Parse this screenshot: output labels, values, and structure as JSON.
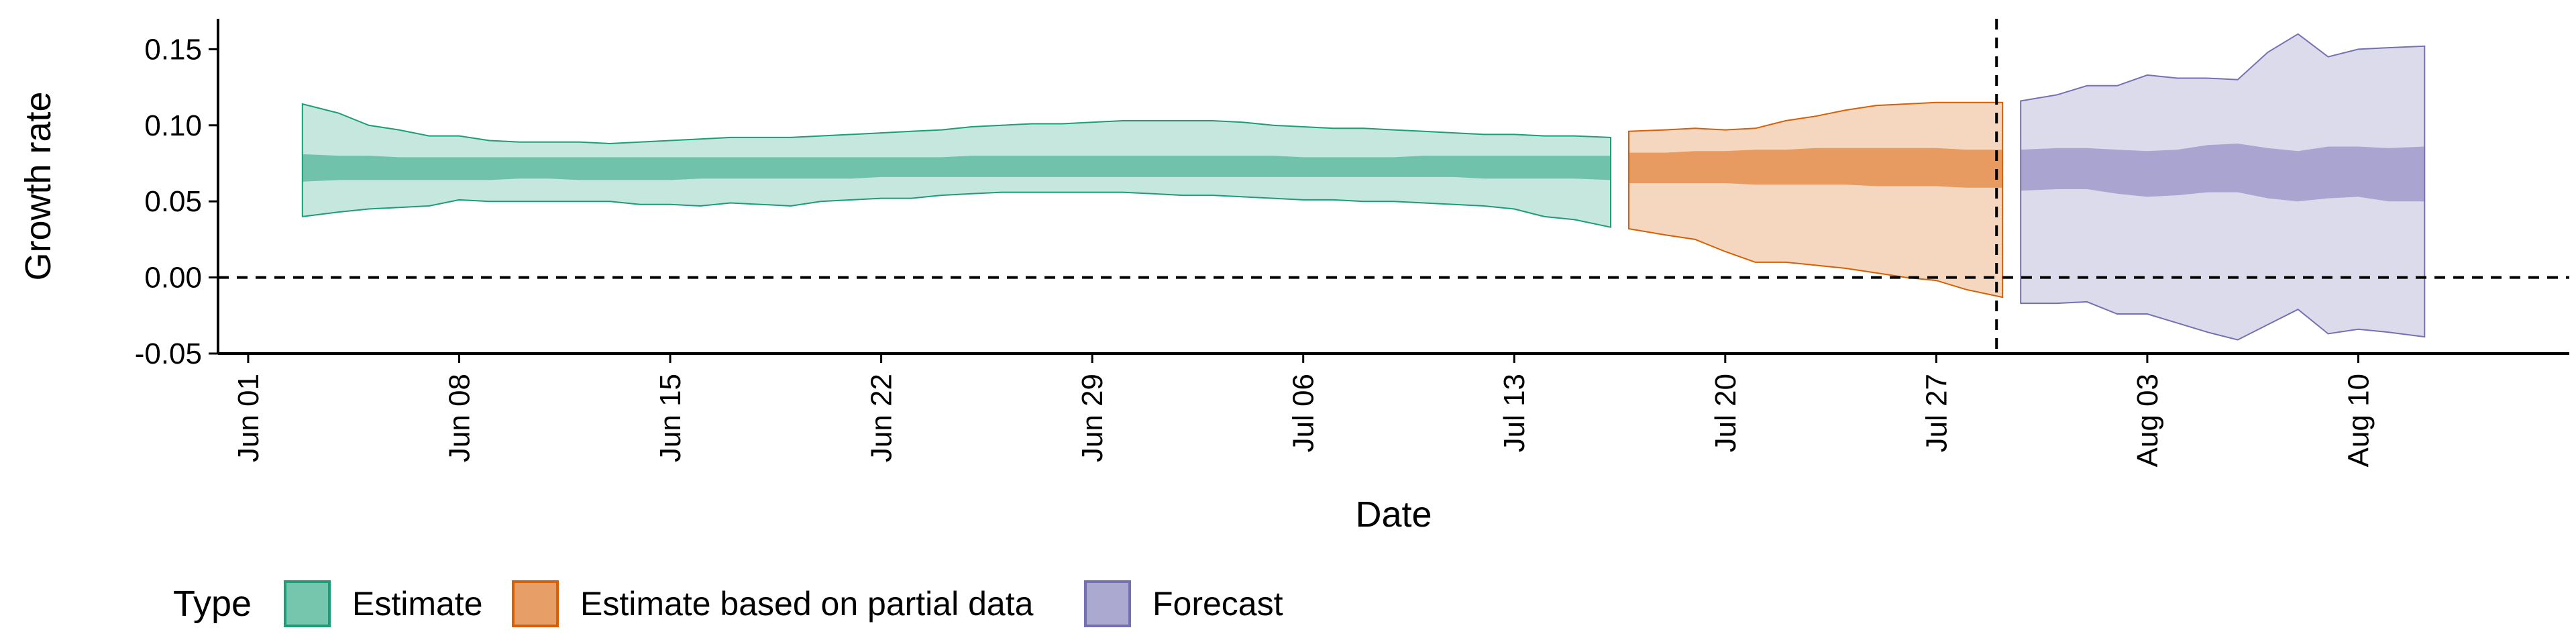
{
  "chart_data": {
    "type": "area",
    "title": "",
    "xlabel": "Date",
    "ylabel": "Growth rate",
    "ylim": [
      -0.05,
      0.17
    ],
    "xlim": [
      "2020-05-31",
      "2020-08-17"
    ],
    "grid": false,
    "x_ticks": [
      {
        "date": "2020-06-01",
        "label": "Jun 01"
      },
      {
        "date": "2020-06-08",
        "label": "Jun 08"
      },
      {
        "date": "2020-06-15",
        "label": "Jun 15"
      },
      {
        "date": "2020-06-22",
        "label": "Jun 22"
      },
      {
        "date": "2020-06-29",
        "label": "Jun 29"
      },
      {
        "date": "2020-07-06",
        "label": "Jul 06"
      },
      {
        "date": "2020-07-13",
        "label": "Jul 13"
      },
      {
        "date": "2020-07-20",
        "label": "Jul 20"
      },
      {
        "date": "2020-07-27",
        "label": "Jul 27"
      },
      {
        "date": "2020-08-03",
        "label": "Aug 03"
      },
      {
        "date": "2020-08-10",
        "label": "Aug 10"
      }
    ],
    "y_ticks": [
      {
        "value": -0.05,
        "label": "-0.05"
      },
      {
        "value": 0.0,
        "label": "0.00"
      },
      {
        "value": 0.05,
        "label": "0.05"
      },
      {
        "value": 0.1,
        "label": "0.10"
      },
      {
        "value": 0.15,
        "label": "0.15"
      }
    ],
    "reference_lines": {
      "horizontal_y": 0.0,
      "vertical_date": "2020-07-29"
    },
    "legend": {
      "title": "Type",
      "position": "bottom-left",
      "entries": [
        {
          "label": "Estimate",
          "fill": "#1b9e77",
          "stroke": "#1b9e77"
        },
        {
          "label": "Estimate based on partial data",
          "fill": "#d95f02",
          "stroke": "#d95f02"
        },
        {
          "label": "Forecast",
          "fill": "#7570b3",
          "stroke": "#7570b3"
        }
      ]
    },
    "series": [
      {
        "name": "Estimate",
        "color": "#1b9e77",
        "dates": [
          "2020-06-03",
          "2020-06-04",
          "2020-06-05",
          "2020-06-06",
          "2020-06-07",
          "2020-06-08",
          "2020-06-09",
          "2020-06-10",
          "2020-06-11",
          "2020-06-12",
          "2020-06-13",
          "2020-06-14",
          "2020-06-15",
          "2020-06-16",
          "2020-06-17",
          "2020-06-18",
          "2020-06-19",
          "2020-06-20",
          "2020-06-21",
          "2020-06-22",
          "2020-06-23",
          "2020-06-24",
          "2020-06-25",
          "2020-06-26",
          "2020-06-27",
          "2020-06-28",
          "2020-06-29",
          "2020-06-30",
          "2020-07-01",
          "2020-07-02",
          "2020-07-03",
          "2020-07-04",
          "2020-07-05",
          "2020-07-06",
          "2020-07-07",
          "2020-07-08",
          "2020-07-09",
          "2020-07-10",
          "2020-07-11",
          "2020-07-12",
          "2020-07-13",
          "2020-07-14",
          "2020-07-15",
          "2020-07-16"
        ],
        "lower_90": [
          0.04,
          0.043,
          0.045,
          0.046,
          0.047,
          0.051,
          0.05,
          0.05,
          0.05,
          0.05,
          0.05,
          0.048,
          0.048,
          0.047,
          0.049,
          0.048,
          0.047,
          0.05,
          0.051,
          0.052,
          0.052,
          0.054,
          0.055,
          0.056,
          0.056,
          0.056,
          0.056,
          0.056,
          0.055,
          0.054,
          0.054,
          0.053,
          0.052,
          0.051,
          0.051,
          0.05,
          0.05,
          0.049,
          0.048,
          0.047,
          0.045,
          0.04,
          0.038,
          0.033
        ],
        "upper_90": [
          0.114,
          0.108,
          0.1,
          0.097,
          0.093,
          0.093,
          0.09,
          0.089,
          0.089,
          0.089,
          0.088,
          0.089,
          0.09,
          0.091,
          0.092,
          0.092,
          0.092,
          0.093,
          0.094,
          0.095,
          0.096,
          0.097,
          0.099,
          0.1,
          0.101,
          0.101,
          0.102,
          0.103,
          0.103,
          0.103,
          0.103,
          0.102,
          0.1,
          0.099,
          0.098,
          0.098,
          0.097,
          0.096,
          0.095,
          0.094,
          0.094,
          0.093,
          0.093,
          0.092
        ],
        "lower_50": [
          0.063,
          0.064,
          0.064,
          0.064,
          0.064,
          0.064,
          0.064,
          0.065,
          0.065,
          0.064,
          0.064,
          0.064,
          0.064,
          0.065,
          0.065,
          0.065,
          0.065,
          0.065,
          0.065,
          0.066,
          0.066,
          0.066,
          0.066,
          0.066,
          0.066,
          0.066,
          0.066,
          0.066,
          0.066,
          0.066,
          0.066,
          0.066,
          0.066,
          0.066,
          0.066,
          0.066,
          0.066,
          0.066,
          0.066,
          0.065,
          0.065,
          0.065,
          0.065,
          0.064
        ],
        "upper_50": [
          0.081,
          0.08,
          0.08,
          0.079,
          0.079,
          0.079,
          0.079,
          0.079,
          0.079,
          0.079,
          0.079,
          0.079,
          0.079,
          0.079,
          0.079,
          0.079,
          0.079,
          0.079,
          0.079,
          0.079,
          0.079,
          0.079,
          0.08,
          0.08,
          0.08,
          0.08,
          0.08,
          0.08,
          0.08,
          0.08,
          0.08,
          0.08,
          0.08,
          0.079,
          0.079,
          0.079,
          0.079,
          0.08,
          0.08,
          0.08,
          0.08,
          0.08,
          0.08,
          0.08
        ]
      },
      {
        "name": "Estimate based on partial data",
        "color": "#d95f02",
        "dates": [
          "2020-07-17",
          "2020-07-18",
          "2020-07-19",
          "2020-07-20",
          "2020-07-21",
          "2020-07-22",
          "2020-07-23",
          "2020-07-24",
          "2020-07-25",
          "2020-07-26",
          "2020-07-27",
          "2020-07-28",
          "2020-07-29"
        ],
        "lower_90": [
          0.032,
          0.028,
          0.025,
          0.017,
          0.01,
          0.01,
          0.008,
          0.006,
          0.003,
          0.0,
          -0.002,
          -0.008,
          -0.013
        ],
        "upper_90": [
          0.096,
          0.097,
          0.098,
          0.097,
          0.098,
          0.103,
          0.106,
          0.11,
          0.113,
          0.114,
          0.115,
          0.115,
          0.115
        ],
        "lower_50": [
          0.062,
          0.062,
          0.062,
          0.062,
          0.061,
          0.061,
          0.061,
          0.061,
          0.06,
          0.06,
          0.06,
          0.059,
          0.059
        ],
        "upper_50": [
          0.082,
          0.082,
          0.083,
          0.083,
          0.084,
          0.084,
          0.085,
          0.085,
          0.085,
          0.085,
          0.085,
          0.084,
          0.084
        ]
      },
      {
        "name": "Forecast",
        "color": "#7570b3",
        "dates": [
          "2020-07-30",
          "2020-07-31",
          "2020-08-01",
          "2020-08-02",
          "2020-08-03",
          "2020-08-04",
          "2020-08-05",
          "2020-08-06",
          "2020-08-07",
          "2020-08-08",
          "2020-08-09",
          "2020-08-10",
          "2020-08-11",
          "2020-08-12"
        ],
        "lower_90": [
          -0.017,
          -0.017,
          -0.016,
          -0.024,
          -0.024,
          -0.03,
          -0.036,
          -0.041,
          -0.031,
          -0.021,
          -0.037,
          -0.034,
          -0.036,
          -0.039
        ],
        "upper_90": [
          0.116,
          0.12,
          0.126,
          0.126,
          0.133,
          0.131,
          0.131,
          0.13,
          0.148,
          0.16,
          0.145,
          0.15,
          0.151,
          0.152
        ],
        "lower_50": [
          0.057,
          0.058,
          0.058,
          0.055,
          0.053,
          0.054,
          0.056,
          0.056,
          0.052,
          0.05,
          0.052,
          0.053,
          0.05,
          0.05
        ],
        "upper_50": [
          0.084,
          0.085,
          0.085,
          0.084,
          0.083,
          0.084,
          0.087,
          0.088,
          0.085,
          0.083,
          0.086,
          0.086,
          0.085,
          0.086
        ]
      }
    ]
  }
}
